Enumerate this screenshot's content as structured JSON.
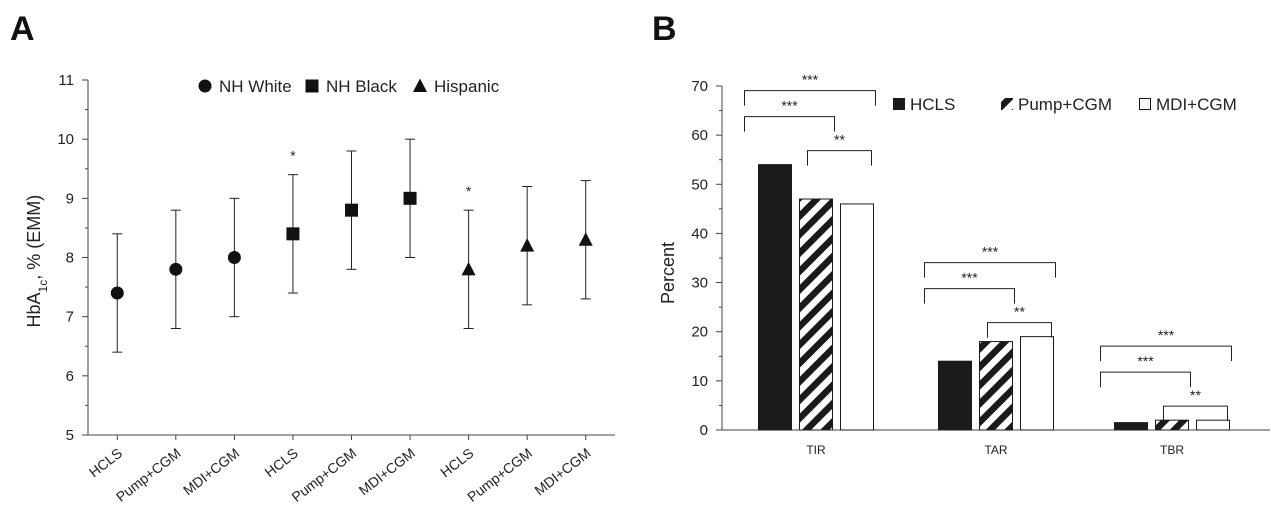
{
  "chart_data": [
    {
      "type": "scatter",
      "panel_label": "A",
      "ylabel": "HbA1c, % (EMM)",
      "ylim": [
        5,
        11
      ],
      "yticks": [
        5,
        6,
        7,
        8,
        9,
        10,
        11
      ],
      "categories": [
        "HCLS",
        "Pump+CGM",
        "MDI+CGM",
        "HCLS",
        "Pump+CGM",
        "MDI+CGM",
        "HCLS",
        "Pump+CGM",
        "MDI+CGM"
      ],
      "legend": [
        "NH White",
        "NH Black",
        "Hispanic"
      ],
      "legend_position": "top",
      "grid": false,
      "series": [
        {
          "name": "NH White",
          "marker": "circle",
          "values": [
            7.4,
            7.8,
            8.0
          ],
          "error_low": [
            6.4,
            6.8,
            7.0
          ],
          "error_high": [
            8.4,
            8.8,
            9.0
          ],
          "significance": [
            "",
            "",
            ""
          ]
        },
        {
          "name": "NH Black",
          "marker": "square",
          "values": [
            8.4,
            8.8,
            9.0
          ],
          "error_low": [
            7.4,
            7.8,
            8.0
          ],
          "error_high": [
            9.4,
            9.8,
            10.0
          ],
          "significance": [
            "*",
            "",
            ""
          ]
        },
        {
          "name": "Hispanic",
          "marker": "triangle",
          "values": [
            7.8,
            8.2,
            8.3
          ],
          "error_low": [
            6.8,
            7.2,
            7.3
          ],
          "error_high": [
            8.8,
            9.2,
            9.3
          ],
          "significance": [
            "*",
            "",
            ""
          ]
        }
      ]
    },
    {
      "type": "bar",
      "panel_label": "B",
      "ylabel": "Percent",
      "ylim": [
        0,
        70
      ],
      "yticks": [
        0,
        10,
        20,
        30,
        40,
        50,
        60,
        70
      ],
      "categories": [
        "TIR",
        "TAR",
        "TBR"
      ],
      "legend": [
        "HCLS",
        "Pump+CGM",
        "MDI+CGM"
      ],
      "legend_position": "top-right",
      "grid": false,
      "series": [
        {
          "name": "HCLS",
          "style": "solid",
          "values": [
            54,
            14,
            1.5
          ]
        },
        {
          "name": "Pump+CGM",
          "style": "hatched",
          "values": [
            47,
            18,
            2
          ]
        },
        {
          "name": "MDI+CGM",
          "style": "open",
          "values": [
            46,
            19,
            2
          ]
        }
      ],
      "brackets": [
        {
          "category": "TIR",
          "from": "HCLS",
          "to": "MDI+CGM",
          "label": "***",
          "level": 2
        },
        {
          "category": "TIR",
          "from": "HCLS",
          "to": "Pump+CGM",
          "label": "***",
          "level": 1
        },
        {
          "category": "TIR",
          "from": "Pump+CGM",
          "to": "MDI+CGM",
          "label": "**",
          "level": 0
        },
        {
          "category": "TAR",
          "from": "HCLS",
          "to": "MDI+CGM",
          "label": "***",
          "level": 2
        },
        {
          "category": "TAR",
          "from": "HCLS",
          "to": "Pump+CGM",
          "label": "***",
          "level": 1
        },
        {
          "category": "TAR",
          "from": "Pump+CGM",
          "to": "MDI+CGM",
          "label": "**",
          "level": 0
        },
        {
          "category": "TBR",
          "from": "HCLS",
          "to": "MDI+CGM",
          "label": "***",
          "level": 2
        },
        {
          "category": "TBR",
          "from": "HCLS",
          "to": "Pump+CGM",
          "label": "***",
          "level": 1
        },
        {
          "category": "TBR",
          "from": "Pump+CGM",
          "to": "MDI+CGM",
          "label": "**",
          "level": 0
        }
      ]
    }
  ]
}
